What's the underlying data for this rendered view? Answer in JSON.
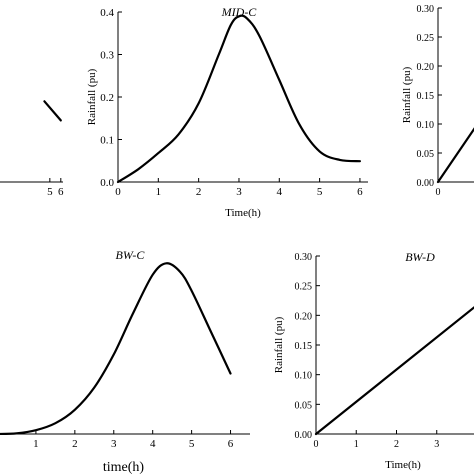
{
  "chart_data": [
    {
      "type": "line",
      "title": "",
      "xlabel": "",
      "ylabel": "",
      "xlim": [
        0,
        6.2
      ],
      "ylim": [
        0,
        0.4
      ],
      "xticks": [
        5,
        6
      ],
      "xtick_labels": [
        "5",
        "6"
      ],
      "yticks": [],
      "ytick_labels": [],
      "series": [
        {
          "x": [
            4.5,
            6.0
          ],
          "y": [
            0.19,
            0.145
          ]
        }
      ]
    },
    {
      "type": "line",
      "title": "MID-C",
      "xlabel": "Time(h)",
      "ylabel": "Rainfall (pu)",
      "xlim": [
        0,
        6.2
      ],
      "ylim": [
        0,
        0.4
      ],
      "xticks": [
        0,
        1,
        2,
        3,
        4,
        5,
        6
      ],
      "xtick_labels": [
        "0",
        "1",
        "2",
        "3",
        "4",
        "5",
        "6"
      ],
      "yticks": [
        0,
        0.1,
        0.2,
        0.3,
        0.4
      ],
      "ytick_labels": [
        "0.0",
        "0.1",
        "0.2",
        "0.3",
        "0.4"
      ],
      "series": [
        {
          "x": [
            0,
            0.5,
            1.0,
            1.5,
            2.0,
            2.5,
            2.8,
            3.0,
            3.2,
            3.5,
            4.0,
            4.5,
            5.0,
            5.5,
            6.0
          ],
          "y": [
            0.0,
            0.03,
            0.068,
            0.112,
            0.185,
            0.3,
            0.37,
            0.39,
            0.385,
            0.345,
            0.24,
            0.135,
            0.072,
            0.052,
            0.049
          ]
        }
      ]
    },
    {
      "type": "line",
      "title": "",
      "xlabel": "",
      "ylabel": "Rainfall (pu)",
      "xlim": [
        0,
        1
      ],
      "ylim": [
        0,
        0.3
      ],
      "xticks": [
        0
      ],
      "xtick_labels": [
        "0"
      ],
      "yticks": [
        0,
        0.05,
        0.1,
        0.15,
        0.2,
        0.25,
        0.3
      ],
      "ytick_labels": [
        "0.00",
        "0.05",
        "0.10",
        "0.15",
        "0.20",
        "0.25",
        "0.30"
      ],
      "series": [
        {
          "x": [
            0,
            0.95
          ],
          "y": [
            0.0,
            0.125
          ]
        }
      ]
    },
    {
      "type": "line",
      "title": "BW-C",
      "xlabel": "time(h)",
      "ylabel": "",
      "xlim": [
        0,
        6.5
      ],
      "ylim": [
        0,
        0.27
      ],
      "xticks": [
        1,
        2,
        3,
        4,
        5,
        6
      ],
      "xtick_labels": [
        "1",
        "2",
        "3",
        "4",
        "5",
        "6"
      ],
      "yticks": [],
      "ytick_labels": [],
      "series": [
        {
          "x": [
            0,
            0.5,
            1.0,
            1.5,
            2.0,
            2.5,
            3.0,
            3.5,
            4.0,
            4.35,
            4.7,
            5.0,
            5.5,
            6.0
          ],
          "y": [
            0.0,
            0.001,
            0.006,
            0.017,
            0.038,
            0.073,
            0.125,
            0.19,
            0.25,
            0.268,
            0.255,
            0.225,
            0.16,
            0.095
          ]
        }
      ]
    },
    {
      "type": "line",
      "title": "BW-D",
      "xlabel": "Time(h)",
      "ylabel": "Rainfall (pu)",
      "xlim": [
        0,
        4.05
      ],
      "ylim": [
        0,
        0.3
      ],
      "xticks": [
        0,
        1,
        2,
        3,
        4
      ],
      "xtick_labels": [
        "0",
        "1",
        "2",
        "3",
        "4"
      ],
      "yticks": [
        0,
        0.05,
        0.1,
        0.15,
        0.2,
        0.25,
        0.3
      ],
      "ytick_labels": [
        "0.00",
        "0.05",
        "0.10",
        "0.15",
        "0.20",
        "0.25",
        "0.30"
      ],
      "series": [
        {
          "x": [
            0,
            4.05
          ],
          "y": [
            0.0,
            0.22
          ]
        }
      ]
    }
  ]
}
